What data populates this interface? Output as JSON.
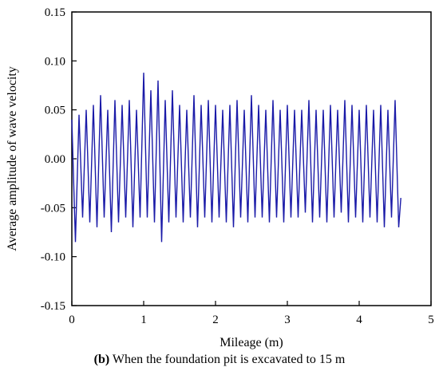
{
  "chart_data": {
    "type": "line",
    "title": "",
    "xlabel": "Mileage (m)",
    "ylabel": "Average amplitude of wave velocity",
    "xlim": [
      0,
      5
    ],
    "ylim": [
      -0.15,
      0.15
    ],
    "xticks": [
      "0",
      "1",
      "2",
      "3",
      "4",
      "5"
    ],
    "yticks": [
      "0.15",
      "0.10",
      "0.05",
      "0.00",
      "-0.05",
      "-0.10",
      "-0.15"
    ],
    "grid": false,
    "line_color": "#1a1aa8",
    "series": [
      {
        "x": [
          0.0,
          0.05,
          0.1,
          0.15,
          0.2,
          0.25,
          0.3,
          0.35,
          0.4,
          0.45,
          0.5,
          0.55,
          0.6,
          0.65,
          0.7,
          0.75,
          0.8,
          0.85,
          0.9,
          0.95,
          1.0,
          1.05,
          1.1,
          1.15,
          1.2,
          1.25,
          1.3,
          1.35,
          1.4,
          1.45,
          1.5,
          1.55,
          1.6,
          1.65,
          1.7,
          1.75,
          1.8,
          1.85,
          1.9,
          1.95,
          2.0,
          2.05,
          2.1,
          2.15,
          2.2,
          2.25,
          2.3,
          2.35,
          2.4,
          2.45,
          2.5,
          2.55,
          2.6,
          2.65,
          2.7,
          2.75,
          2.8,
          2.85,
          2.9,
          2.95,
          3.0,
          3.05,
          3.1,
          3.15,
          3.2,
          3.25,
          3.3,
          3.35,
          3.4,
          3.45,
          3.5,
          3.55,
          3.6,
          3.65,
          3.7,
          3.75,
          3.8,
          3.85,
          3.9,
          3.95,
          4.0,
          4.05,
          4.1,
          4.15,
          4.2,
          4.25,
          4.3,
          4.35,
          4.4,
          4.45,
          4.5,
          4.55,
          4.58
        ],
        "y": [
          0.04,
          -0.085,
          0.045,
          -0.06,
          0.05,
          -0.065,
          0.055,
          -0.07,
          0.065,
          -0.06,
          0.05,
          -0.075,
          0.06,
          -0.065,
          0.055,
          -0.06,
          0.06,
          -0.07,
          0.05,
          -0.06,
          0.088,
          -0.06,
          0.07,
          -0.065,
          0.08,
          -0.085,
          0.06,
          -0.065,
          0.07,
          -0.06,
          0.055,
          -0.065,
          0.05,
          -0.06,
          0.065,
          -0.07,
          0.055,
          -0.06,
          0.06,
          -0.065,
          0.055,
          -0.06,
          0.05,
          -0.065,
          0.055,
          -0.07,
          0.06,
          -0.06,
          0.05,
          -0.065,
          0.065,
          -0.06,
          0.055,
          -0.06,
          0.05,
          -0.065,
          0.06,
          -0.06,
          0.05,
          -0.065,
          0.055,
          -0.06,
          0.05,
          -0.06,
          0.05,
          -0.055,
          0.06,
          -0.065,
          0.05,
          -0.06,
          0.05,
          -0.065,
          0.055,
          -0.06,
          0.05,
          -0.055,
          0.06,
          -0.065,
          0.055,
          -0.06,
          0.05,
          -0.065,
          0.055,
          -0.06,
          0.05,
          -0.065,
          0.055,
          -0.07,
          0.05,
          -0.06,
          0.06,
          -0.07,
          -0.04
        ]
      }
    ]
  },
  "caption": {
    "label": "(b)",
    "text": "When the foundation pit is excavated to 15 m"
  }
}
